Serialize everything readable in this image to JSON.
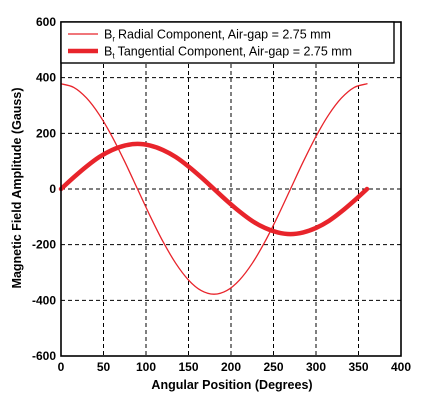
{
  "chart_data": {
    "type": "line",
    "xlabel": "Angular Position (Degrees)",
    "ylabel": "Magnetic Field Amplitude (Gauss)",
    "xlim": [
      0,
      400
    ],
    "ylim": [
      -600,
      600
    ],
    "xticks": [
      0,
      50,
      100,
      150,
      200,
      250,
      300,
      350,
      400
    ],
    "yticks": [
      -600,
      -400,
      -200,
      0,
      200,
      400,
      600
    ],
    "grid": true,
    "grid_style": "dashed",
    "legend_position": "top",
    "series": [
      {
        "name": "Radial Component, Air-gap = 2.75 mm",
        "symbol": "B",
        "subscript": "r",
        "color": "#e8242b",
        "line_weight": "thin",
        "x": [
          0,
          15,
          30,
          45,
          60,
          75,
          90,
          105,
          120,
          135,
          150,
          165,
          180,
          195,
          210,
          225,
          240,
          255,
          270,
          285,
          300,
          315,
          330,
          345,
          360
        ],
        "y": [
          378,
          365,
          327,
          267,
          189,
          98,
          0,
          -98,
          -189,
          -267,
          -327,
          -365,
          -378,
          -365,
          -327,
          -267,
          -189,
          -98,
          0,
          98,
          189,
          267,
          327,
          365,
          378
        ]
      },
      {
        "name": "Tangential Component, Air-gap = 2.75 mm",
        "symbol": "B",
        "subscript": "t",
        "color": "#e8242b",
        "line_weight": "thick",
        "x": [
          0,
          15,
          30,
          45,
          60,
          75,
          90,
          105,
          120,
          135,
          150,
          165,
          180,
          195,
          210,
          225,
          240,
          255,
          270,
          285,
          300,
          315,
          330,
          345,
          360
        ],
        "y": [
          0,
          42,
          81,
          115,
          140,
          156,
          162,
          156,
          140,
          115,
          81,
          42,
          0,
          -42,
          -81,
          -115,
          -140,
          -156,
          -162,
          -156,
          -140,
          -115,
          -81,
          -42,
          0
        ]
      }
    ]
  }
}
